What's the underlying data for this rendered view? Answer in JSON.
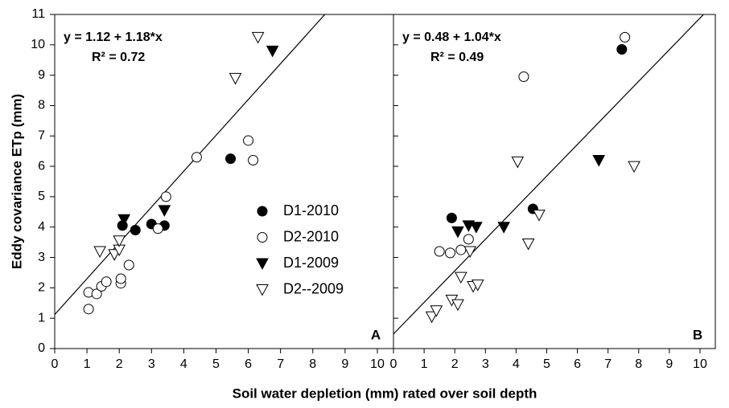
{
  "chart_data": [
    {
      "type": "scatter",
      "ylabel": "Eddy covariance ETp (mm)",
      "xlabel": "Soil water depletion (mm) rated over soil depth",
      "panel_label": "A",
      "equation": "y = 1.12 + 1.18*x",
      "r2": "R² = 0.72",
      "fit": {
        "intercept": 1.12,
        "slope": 1.18
      },
      "xlim": [
        0,
        10.5
      ],
      "xticks": [
        0,
        1,
        2,
        3,
        4,
        5,
        6,
        7,
        8,
        9,
        10
      ],
      "ylim": [
        0,
        11
      ],
      "yticks": [
        0,
        1,
        2,
        3,
        4,
        5,
        6,
        7,
        8,
        9,
        10,
        11
      ],
      "legend": "inside",
      "series": [
        {
          "name": "D1-2010",
          "marker": "circle",
          "filled": true,
          "x": [
            2.1,
            2.5,
            3.0,
            3.4,
            5.45
          ],
          "values": [
            4.05,
            3.9,
            4.1,
            4.05,
            6.25
          ]
        },
        {
          "name": "D2-2010",
          "marker": "circle",
          "filled": false,
          "x": [
            1.05,
            1.05,
            1.3,
            1.45,
            1.6,
            2.05,
            2.05,
            2.3,
            3.2,
            3.45,
            4.4,
            6.0,
            6.15
          ],
          "values": [
            1.3,
            1.85,
            1.8,
            2.05,
            2.2,
            2.15,
            2.3,
            2.75,
            3.95,
            5.0,
            6.3,
            6.85,
            6.2
          ]
        },
        {
          "name": "D1-2009",
          "marker": "triangle",
          "filled": true,
          "x": [
            2.15,
            3.4,
            6.75
          ],
          "values": [
            4.25,
            4.55,
            9.8
          ]
        },
        {
          "name": "D2--2009",
          "marker": "triangle",
          "filled": false,
          "x": [
            1.4,
            1.85,
            2.0,
            2.0,
            5.6,
            6.3
          ],
          "values": [
            3.2,
            3.1,
            3.25,
            3.55,
            8.9,
            10.25
          ]
        }
      ]
    },
    {
      "type": "scatter",
      "panel_label": "B",
      "equation": "y = 0.48 + 1.04*x",
      "r2": "R² = 0.49",
      "fit": {
        "intercept": 0.48,
        "slope": 1.04
      },
      "xlim": [
        0,
        10.5
      ],
      "xticks": [
        0,
        1,
        2,
        3,
        4,
        5,
        6,
        7,
        8,
        9,
        10
      ],
      "ylim": [
        0,
        11
      ],
      "yticks": [
        0,
        1,
        2,
        3,
        4,
        5,
        6,
        7,
        8,
        9,
        10,
        11
      ],
      "series": [
        {
          "marker": "circle",
          "filled": true,
          "x": [
            1.9,
            4.55,
            7.45
          ],
          "values": [
            4.3,
            4.6,
            9.85
          ]
        },
        {
          "marker": "circle",
          "filled": false,
          "x": [
            1.5,
            1.85,
            2.2,
            2.45,
            4.25,
            7.55
          ],
          "values": [
            3.2,
            3.15,
            3.25,
            3.6,
            8.95,
            10.25
          ]
        },
        {
          "marker": "triangle",
          "filled": true,
          "x": [
            2.1,
            2.45,
            2.7,
            3.6,
            6.7
          ],
          "values": [
            3.85,
            4.05,
            4.0,
            4.0,
            6.2
          ]
        },
        {
          "marker": "triangle",
          "filled": false,
          "x": [
            1.25,
            1.4,
            1.9,
            2.1,
            2.2,
            2.5,
            2.6,
            2.75,
            4.05,
            4.4,
            4.75,
            7.85
          ],
          "values": [
            1.05,
            1.25,
            1.6,
            1.45,
            2.35,
            3.2,
            2.05,
            2.1,
            6.15,
            3.45,
            4.4,
            6.0
          ]
        }
      ]
    }
  ]
}
